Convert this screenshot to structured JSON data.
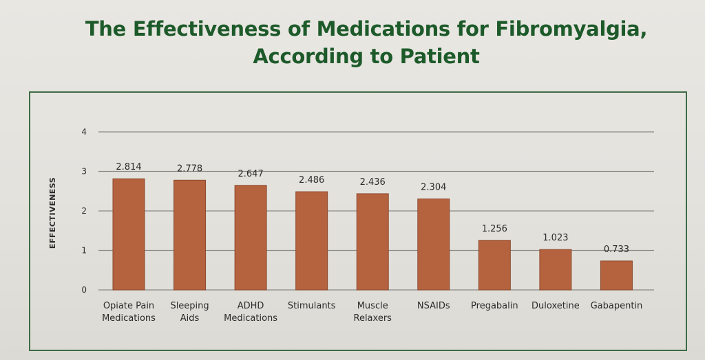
{
  "chart_data": {
    "type": "bar",
    "title_lines": [
      "The Effectiveness of Medications for Fibromyalgia,",
      "According to Patient"
    ],
    "xlabel": "",
    "ylabel": "EFFECTIVENESS",
    "ylim": [
      0,
      4
    ],
    "yticks": [
      "0",
      "1",
      "2",
      "3",
      "4"
    ],
    "grid": true,
    "categories": [
      [
        "Opiate Pain",
        "Medications"
      ],
      [
        "Sleeping",
        "Aids"
      ],
      [
        "ADHD",
        "Medications"
      ],
      [
        "Stimulants"
      ],
      [
        "Muscle",
        "Relaxers"
      ],
      [
        "NSAIDs"
      ],
      [
        "Pregabalin"
      ],
      [
        "Duloxetine"
      ],
      [
        "Gabapentin"
      ]
    ],
    "values": [
      2.814,
      2.778,
      2.647,
      2.486,
      2.436,
      2.304,
      1.256,
      1.023,
      0.733
    ],
    "value_labels": [
      "2.814",
      "2.778",
      "2.647",
      "2.486",
      "2.436",
      "2.304",
      "1.256",
      "1.023",
      "0.733"
    ],
    "colors": {
      "bar": "#b5623f",
      "bar_edge": "#8c4a2d",
      "grid": "#8a8a86",
      "title": "#1d5a2a",
      "frame": "#3d6b45"
    }
  }
}
